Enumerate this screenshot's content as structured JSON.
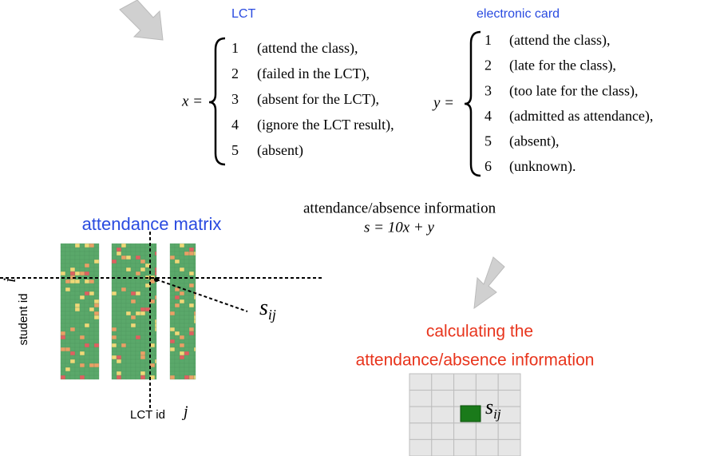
{
  "lct": {
    "title": "LCT",
    "lhs": "x =",
    "cases": [
      {
        "num": "1",
        "text": "(attend the class),"
      },
      {
        "num": "2",
        "text": "(failed in the LCT),"
      },
      {
        "num": "3",
        "text": "(absent for the LCT),"
      },
      {
        "num": "4",
        "text": "(ignore the LCT result),"
      },
      {
        "num": "5",
        "text": "(absent)"
      }
    ]
  },
  "card": {
    "title": "electronic card",
    "lhs": "y =",
    "cases": [
      {
        "num": "1",
        "text": "(attend the class),"
      },
      {
        "num": "2",
        "text": "(late for the class),"
      },
      {
        "num": "3",
        "text": "(too late for the class),"
      },
      {
        "num": "4",
        "text": "(admitted as attendance),"
      },
      {
        "num": "5",
        "text": "(absent),"
      },
      {
        "num": "6",
        "text": "(unknown)."
      }
    ]
  },
  "info": {
    "title": "attendance/absence information",
    "formula": "s = 10x + y"
  },
  "matrix": {
    "title": "attendance matrix",
    "row_axis": "student id",
    "row_var": "i",
    "col_axis": "LCT id",
    "col_var": "j",
    "cell": {
      "base": "s",
      "sub": "ij"
    }
  },
  "calc": {
    "line1": "calculating the",
    "line2": "attendance/absence information",
    "cell": {
      "base": "s",
      "sub": "ij"
    }
  }
}
